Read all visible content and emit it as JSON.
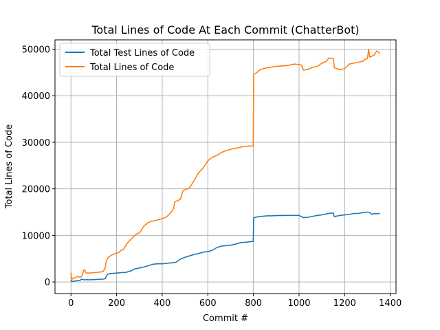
{
  "chart_data": {
    "type": "line",
    "title": "Total Lines of Code At Each Commit (ChatterBot)",
    "xlabel": "Commit #",
    "ylabel": "Total Lines of Code",
    "xlim": [
      -70,
      1425
    ],
    "ylim": [
      -2500,
      52000
    ],
    "x_ticks": [
      0,
      200,
      400,
      600,
      800,
      1000,
      1200,
      1400
    ],
    "y_ticks": [
      0,
      10000,
      20000,
      30000,
      40000,
      50000
    ],
    "x_tick_labels": [
      "0",
      "200",
      "400",
      "600",
      "800",
      "1000",
      "1200",
      "1400"
    ],
    "y_tick_labels": [
      "0",
      "10000",
      "20000",
      "30000",
      "40000",
      "50000"
    ],
    "grid": true,
    "legend_position": "top-left",
    "series": [
      {
        "name": "Total Test Lines of Code",
        "color": "#1f77b4",
        "x": [
          0,
          1,
          2,
          3,
          5,
          10,
          20,
          30,
          35,
          40,
          45,
          50,
          60,
          70,
          80,
          100,
          120,
          140,
          150,
          155,
          160,
          165,
          170,
          200,
          220,
          240,
          260,
          280,
          300,
          320,
          340,
          360,
          380,
          400,
          420,
          440,
          460,
          480,
          500,
          520,
          540,
          560,
          580,
          600,
          620,
          640,
          660,
          680,
          700,
          720,
          740,
          760,
          780,
          795,
          799,
          801,
          820,
          840,
          860,
          880,
          900,
          950,
          1000,
          1020,
          1040,
          1060,
          1080,
          1100,
          1120,
          1140,
          1150,
          1155,
          1160,
          1180,
          1200,
          1220,
          1240,
          1260,
          1280,
          1300,
          1310,
          1320,
          1330,
          1340,
          1350,
          1355
        ],
        "values": [
          100,
          400,
          150,
          200,
          100,
          150,
          200,
          300,
          250,
          300,
          600,
          500,
          450,
          500,
          450,
          500,
          550,
          600,
          700,
          1200,
          1600,
          1700,
          1800,
          1900,
          2000,
          2050,
          2300,
          2800,
          3000,
          3200,
          3500,
          3800,
          3900,
          3900,
          4000,
          4100,
          4200,
          4900,
          5300,
          5600,
          5900,
          6100,
          6400,
          6500,
          6800,
          7400,
          7700,
          7800,
          7900,
          8100,
          8400,
          8500,
          8600,
          8700,
          8700,
          13800,
          14000,
          14100,
          14200,
          14200,
          14250,
          14300,
          14300,
          13800,
          13900,
          14100,
          14300,
          14400,
          14600,
          14800,
          14800,
          14000,
          14100,
          14300,
          14400,
          14500,
          14700,
          14700,
          14900,
          15000,
          14900,
          14500,
          14700,
          14600,
          14700,
          14700
        ]
      },
      {
        "name": "Total Lines of Code",
        "color": "#ff7f0e",
        "x": [
          0,
          1,
          2,
          3,
          5,
          10,
          20,
          30,
          40,
          50,
          55,
          60,
          65,
          70,
          80,
          100,
          120,
          140,
          150,
          155,
          160,
          165,
          170,
          180,
          190,
          200,
          210,
          220,
          230,
          240,
          250,
          260,
          270,
          280,
          290,
          300,
          320,
          340,
          350,
          360,
          380,
          400,
          420,
          440,
          450,
          455,
          460,
          470,
          480,
          490,
          500,
          510,
          520,
          540,
          560,
          580,
          600,
          620,
          640,
          660,
          680,
          700,
          720,
          740,
          760,
          780,
          795,
          799,
          801,
          810,
          830,
          850,
          870,
          900,
          950,
          980,
          1000,
          1010,
          1020,
          1040,
          1060,
          1080,
          1100,
          1120,
          1130,
          1150,
          1155,
          1160,
          1180,
          1200,
          1220,
          1240,
          1260,
          1280,
          1290,
          1300,
          1305,
          1310,
          1320,
          1330,
          1340,
          1350,
          1355
        ],
        "values": [
          2000,
          1500,
          700,
          900,
          600,
          800,
          900,
          1200,
          1000,
          1400,
          2500,
          2600,
          2000,
          1900,
          1900,
          2000,
          2100,
          2200,
          3000,
          4500,
          5000,
          5300,
          5500,
          5800,
          6000,
          6200,
          6300,
          6800,
          7000,
          7800,
          8500,
          9000,
          9500,
          10000,
          10400,
          10500,
          12000,
          12800,
          13000,
          13100,
          13300,
          13600,
          14000,
          15000,
          15800,
          17200,
          17300,
          17500,
          17800,
          19500,
          19800,
          20000,
          20200,
          21800,
          23500,
          24500,
          26000,
          26800,
          27200,
          27800,
          28200,
          28500,
          28700,
          28900,
          29100,
          29200,
          29200,
          29200,
          44600,
          44800,
          45600,
          45900,
          46100,
          46300,
          46500,
          46800,
          46700,
          46600,
          45500,
          45700,
          46100,
          46300,
          47000,
          47400,
          48100,
          48000,
          46000,
          45900,
          45600,
          45800,
          46800,
          47000,
          47200,
          47400,
          47800,
          48000,
          50000,
          48300,
          48500,
          48800,
          49600,
          49300,
          49100
        ]
      }
    ]
  }
}
